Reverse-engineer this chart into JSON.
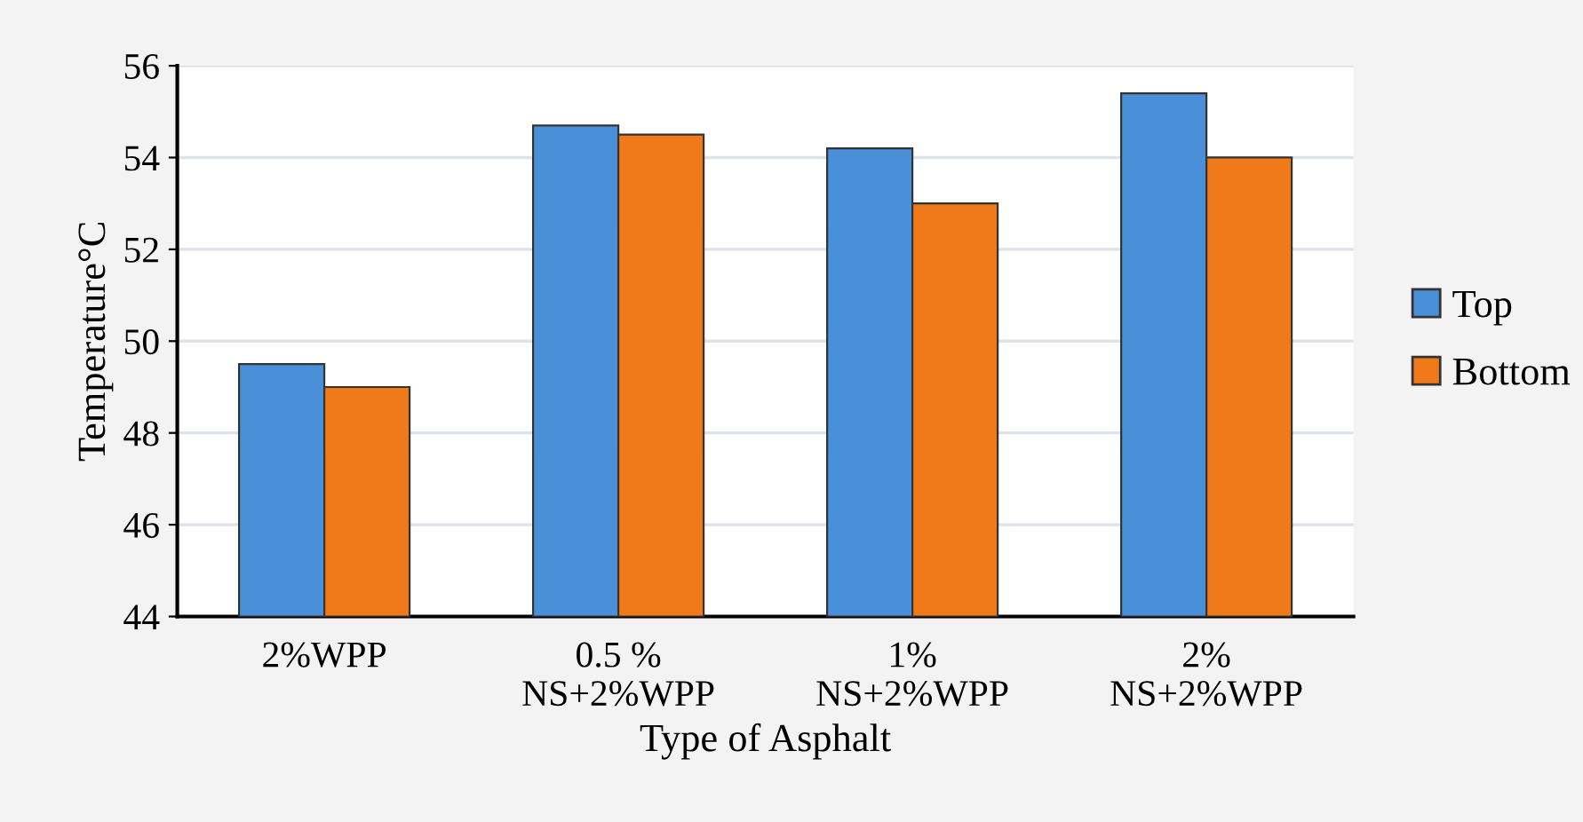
{
  "chart_data": {
    "type": "bar",
    "xlabel": "Type of Asphalt",
    "ylabel": "Temperature°C",
    "categories": [
      "2%WPP",
      "0.5 %\nNS+2%WPP",
      "1%\nNS+2%WPP",
      "2%\nNS+2%WPP"
    ],
    "series": [
      {
        "name": "Top",
        "color": "#4a90d9",
        "values": [
          49.5,
          54.7,
          54.2,
          55.4
        ]
      },
      {
        "name": "Bottom",
        "color": "#f07a1a",
        "values": [
          49.0,
          54.5,
          53.0,
          54.0
        ]
      }
    ],
    "ylim": [
      44,
      56
    ],
    "yticks": [
      44,
      46,
      48,
      50,
      52,
      54,
      56
    ],
    "grid": "y",
    "legend": "right"
  }
}
